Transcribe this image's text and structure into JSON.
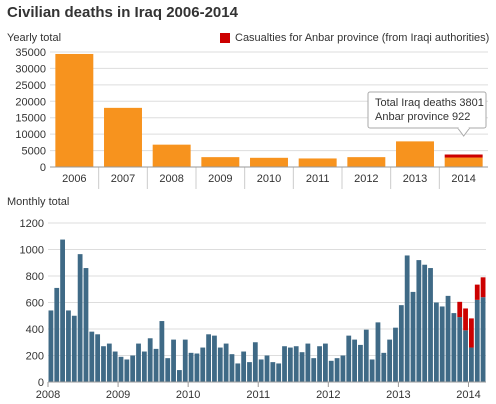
{
  "page": {
    "title": "Civilian deaths in Iraq 2006-2014",
    "legend_label": "Casualties for Anbar province (from Iraqi authorities)",
    "colors": {
      "orange": "#f7931e",
      "blue": "#3f6a86",
      "red": "#cc0000",
      "grid": "#dddddd"
    }
  },
  "chart_data": [
    {
      "type": "bar",
      "title": "Yearly total",
      "categories": [
        "2006",
        "2007",
        "2008",
        "2009",
        "2010",
        "2011",
        "2012",
        "2013",
        "2014"
      ],
      "series": [
        {
          "name": "",
          "values": [
            34400,
            18000,
            6800,
            3000,
            2800,
            2600,
            3000,
            7800,
            3801
          ]
        },
        {
          "name": "Casualties for Anbar province (from Iraqi authorities)",
          "values": [
            0,
            0,
            0,
            0,
            0,
            0,
            0,
            0,
            922
          ]
        }
      ],
      "ylim": [
        0,
        35000
      ],
      "yticks": [
        "0",
        "5000",
        "10000",
        "15000",
        "20000",
        "25000",
        "30000",
        "35000"
      ],
      "annotation": [
        "Total Iraq deaths 3801",
        "Anbar province 922"
      ],
      "grid": true
    },
    {
      "type": "bar",
      "title": "Monthly total",
      "xticks": [
        "2008",
        "2009",
        "2010",
        "2011",
        "2012",
        "2013",
        "2014"
      ],
      "series": [
        {
          "name": "",
          "values": [
            540,
            710,
            1075,
            540,
            500,
            965,
            860,
            380,
            360,
            270,
            290,
            230,
            190,
            170,
            200,
            290,
            230,
            330,
            250,
            460,
            180,
            320,
            90,
            320,
            220,
            215,
            260,
            360,
            350,
            260,
            290,
            210,
            140,
            230,
            150,
            300,
            170,
            200,
            150,
            140,
            270,
            260,
            270,
            225,
            290,
            180,
            270,
            290,
            160,
            180,
            200,
            350,
            320,
            280,
            395,
            170,
            450,
            220,
            320,
            410,
            580,
            955,
            680,
            920,
            885,
            860,
            600,
            570,
            650,
            520,
            490,
            390,
            260,
            620,
            640
          ]
        },
        {
          "name": "Casualties for Anbar province (from Iraqi authorities)",
          "values": [
            0,
            0,
            0,
            0,
            0,
            0,
            0,
            0,
            0,
            0,
            0,
            0,
            0,
            0,
            0,
            0,
            0,
            0,
            0,
            0,
            0,
            0,
            0,
            0,
            0,
            0,
            0,
            0,
            0,
            0,
            0,
            0,
            0,
            0,
            0,
            0,
            0,
            0,
            0,
            0,
            0,
            0,
            0,
            0,
            0,
            0,
            0,
            0,
            0,
            0,
            0,
            0,
            0,
            0,
            0,
            0,
            0,
            0,
            0,
            0,
            0,
            0,
            0,
            0,
            0,
            0,
            0,
            0,
            0,
            0,
            115,
            165,
            220,
            115,
            150
          ]
        }
      ],
      "ylim": [
        0,
        1200
      ],
      "yticks": [
        "0",
        "200",
        "400",
        "600",
        "800",
        "1000",
        "1200"
      ],
      "grid": true
    }
  ]
}
